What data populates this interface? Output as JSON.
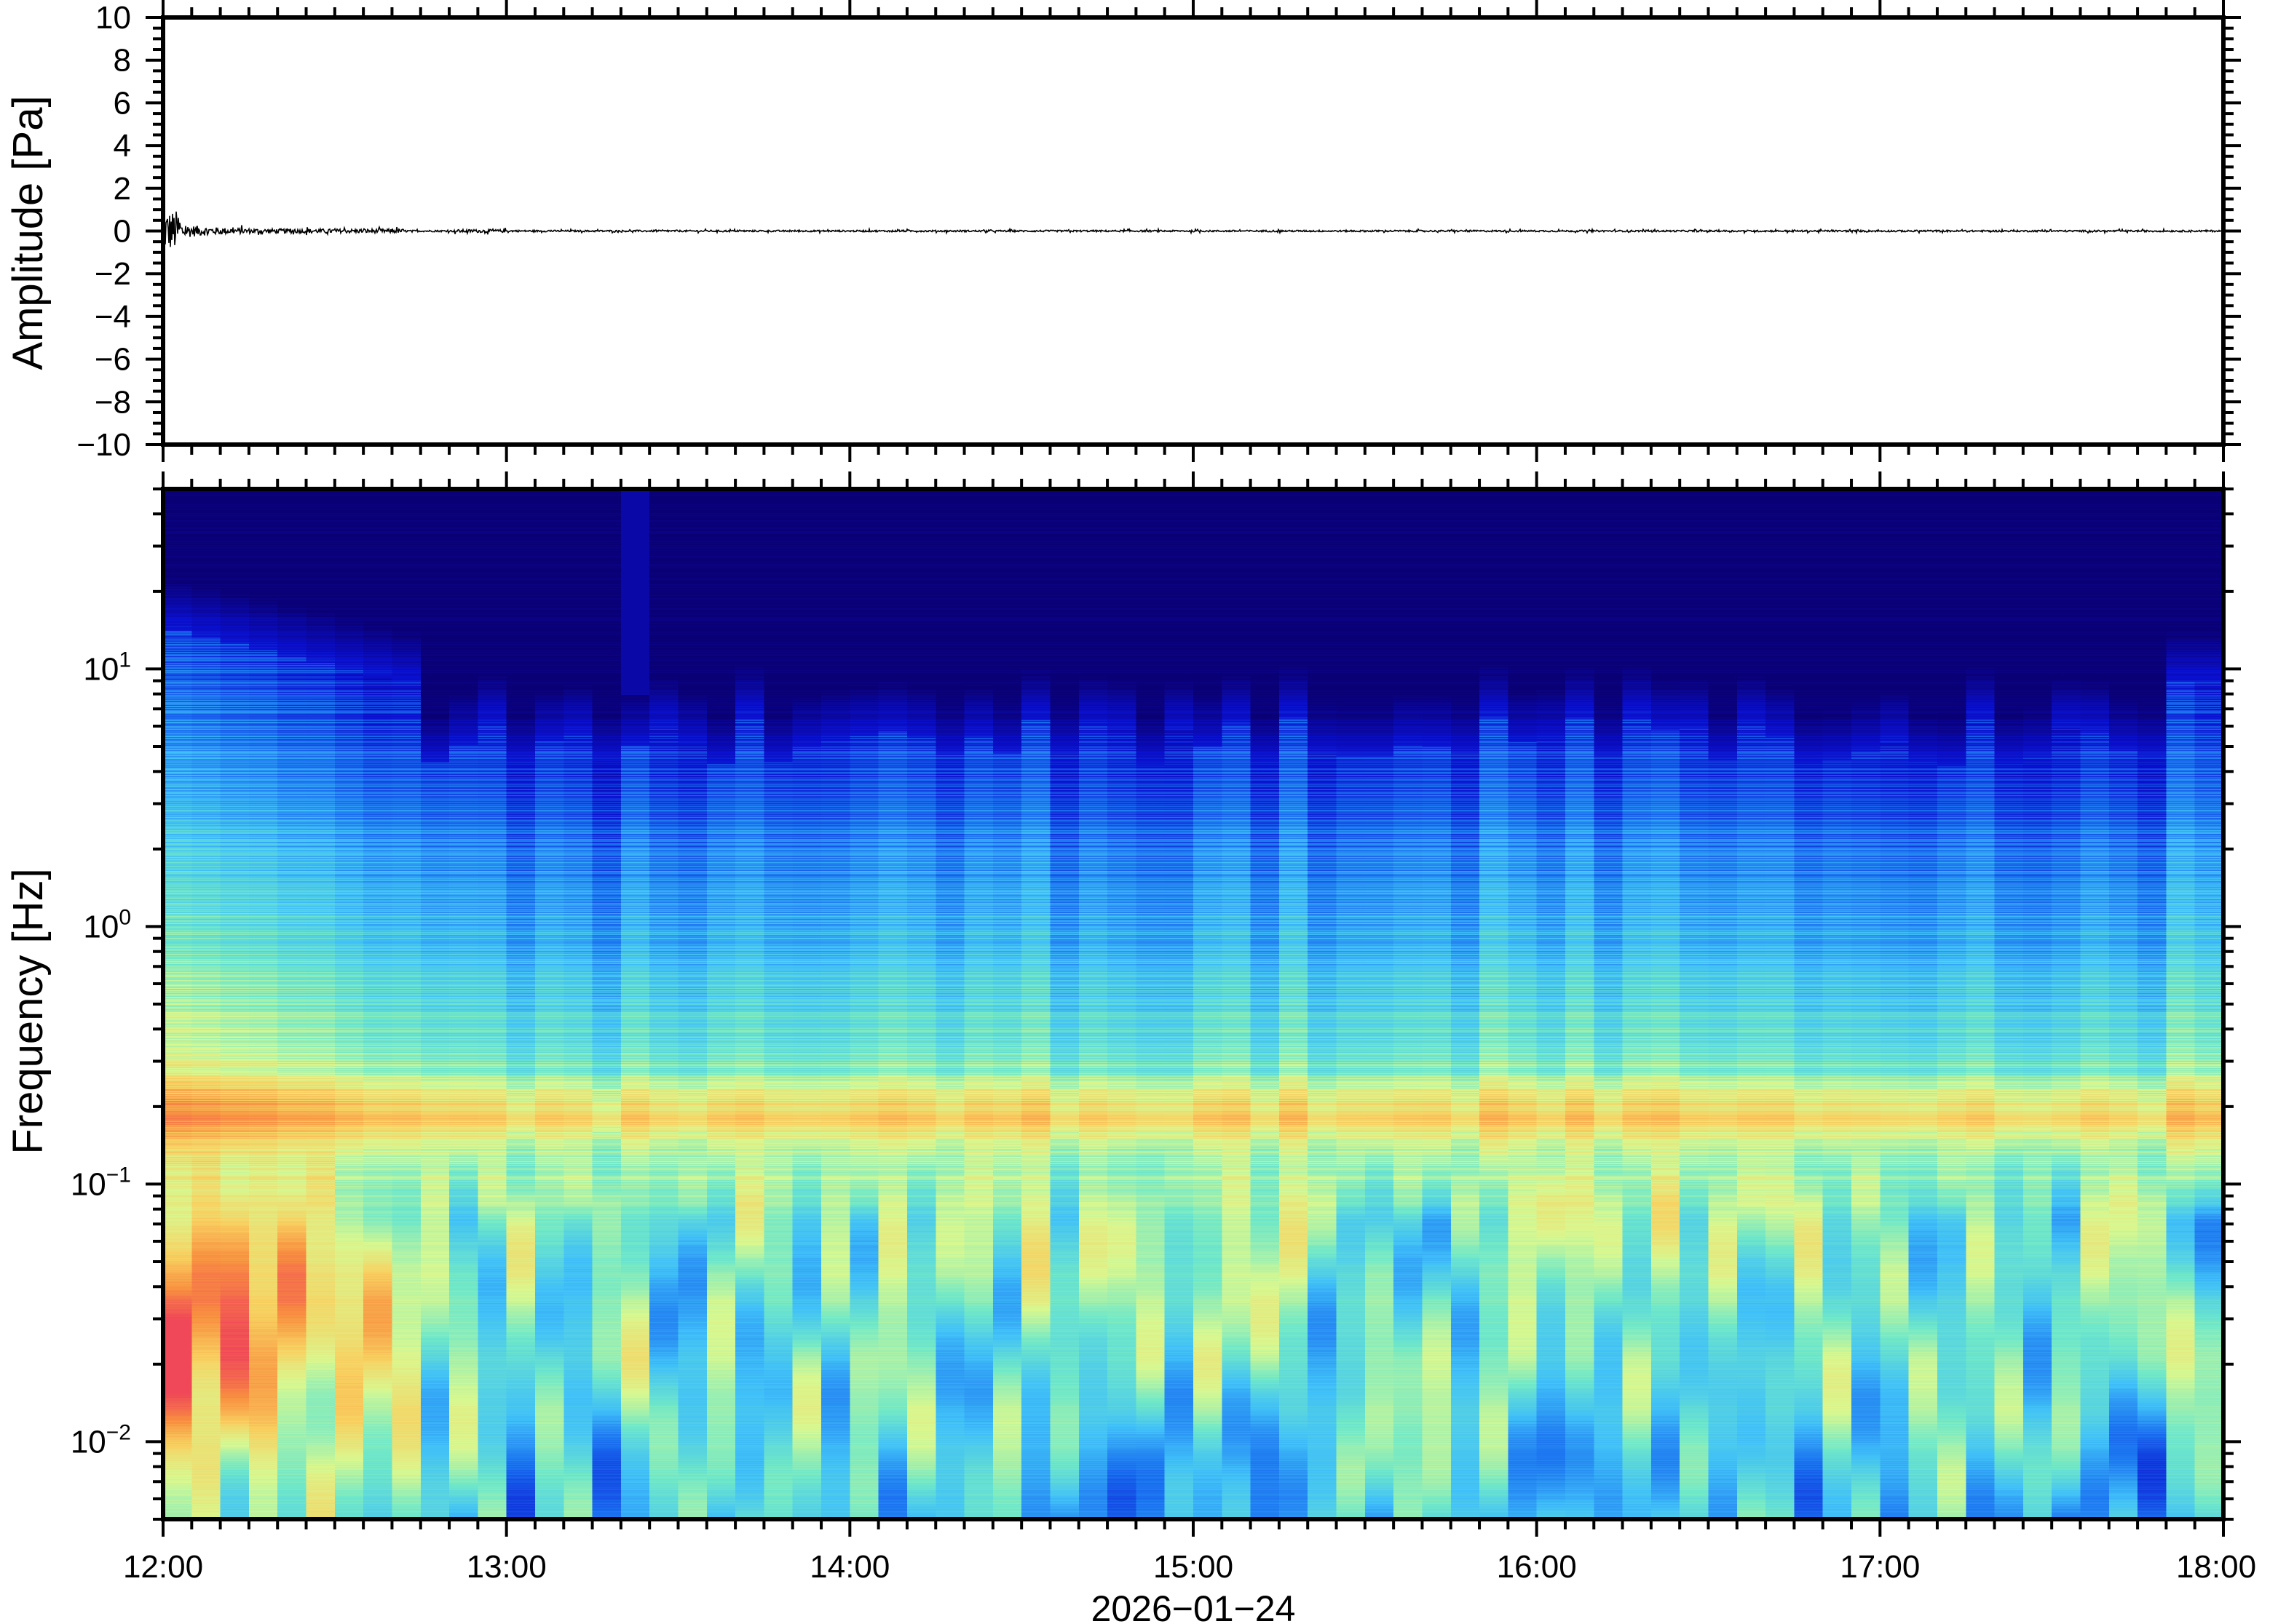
{
  "chart_data": [
    {
      "type": "line",
      "ylabel": "Amplitude [Pa]",
      "ylim": [
        -10,
        10
      ],
      "yticks": [
        "10",
        "8",
        "6",
        "4",
        "2",
        "0",
        "−2",
        "−4",
        "−6",
        "−8",
        "−10"
      ],
      "xlim": [
        "12:00",
        "18:00"
      ],
      "description_series": "pressure waveform, peak about ±1.2 Pa near 12:01, decaying to ±0.1 Pa after 12:40",
      "grid": false
    },
    {
      "type": "heatmap",
      "ylabel": "Frequency [Hz]",
      "yscale": "log",
      "ylim": [
        0.005,
        50
      ],
      "yticks": [
        {
          "base": "10",
          "exp": "1"
        },
        {
          "base": "10",
          "exp": "0"
        },
        {
          "base": "10",
          "exp": "−1"
        },
        {
          "base": "10",
          "exp": "−2"
        }
      ],
      "xticks": [
        "12:00",
        "13:00",
        "14:00",
        "15:00",
        "16:00",
        "17:00",
        "18:00"
      ],
      "xlabel": "2026−01−24",
      "colormap": [
        "#0a0075",
        "#0a10d0",
        "#1a70f0",
        "#40c0f8",
        "#70e8c8",
        "#d8f890",
        "#f8d060",
        "#f89040",
        "#f04858"
      ],
      "features": {
        "microbarom_peak_hz": 0.2,
        "strong_low_freq_energy": [
          "12:00",
          "12:40"
        ],
        "spike": "13:20"
      }
    }
  ]
}
